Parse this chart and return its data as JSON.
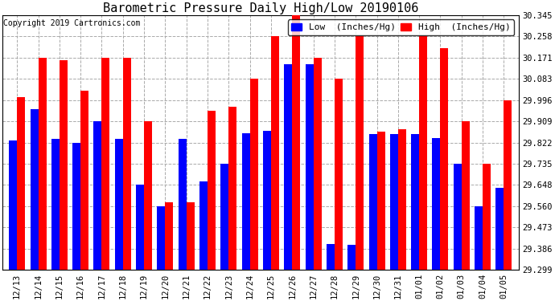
{
  "title": "Barometric Pressure Daily High/Low 20190106",
  "copyright": "Copyright 2019 Cartronics.com",
  "categories": [
    "12/13",
    "12/14",
    "12/15",
    "12/16",
    "12/17",
    "12/18",
    "12/19",
    "12/20",
    "12/21",
    "12/22",
    "12/23",
    "12/24",
    "12/25",
    "12/26",
    "12/27",
    "12/28",
    "12/29",
    "12/30",
    "12/31",
    "01/01",
    "01/02",
    "01/03",
    "01/04",
    "01/05"
  ],
  "low_values": [
    29.831,
    29.958,
    29.836,
    29.822,
    29.909,
    29.836,
    29.648,
    29.56,
    29.836,
    29.663,
    29.735,
    29.86,
    29.87,
    30.145,
    30.145,
    29.405,
    29.4,
    29.858,
    29.856,
    29.858,
    29.841,
    29.735,
    29.56,
    29.635
  ],
  "high_values": [
    30.009,
    30.171,
    30.16,
    30.034,
    30.171,
    30.171,
    29.909,
    29.575,
    29.578,
    29.951,
    29.97,
    30.083,
    30.258,
    30.345,
    30.171,
    30.083,
    30.258,
    29.865,
    29.875,
    30.258,
    30.209,
    29.909,
    29.735,
    29.996
  ],
  "low_color": "#0000ff",
  "high_color": "#ff0000",
  "bg_color": "#ffffff",
  "grid_color": "#aaaaaa",
  "yticks": [
    29.299,
    29.386,
    29.473,
    29.56,
    29.648,
    29.735,
    29.822,
    29.909,
    29.996,
    30.083,
    30.171,
    30.258,
    30.345
  ],
  "ylim_min": 29.299,
  "ylim_max": 30.345,
  "bar_width": 0.38,
  "title_fontsize": 11,
  "tick_fontsize": 7.5,
  "legend_fontsize": 8,
  "copyright_fontsize": 7
}
